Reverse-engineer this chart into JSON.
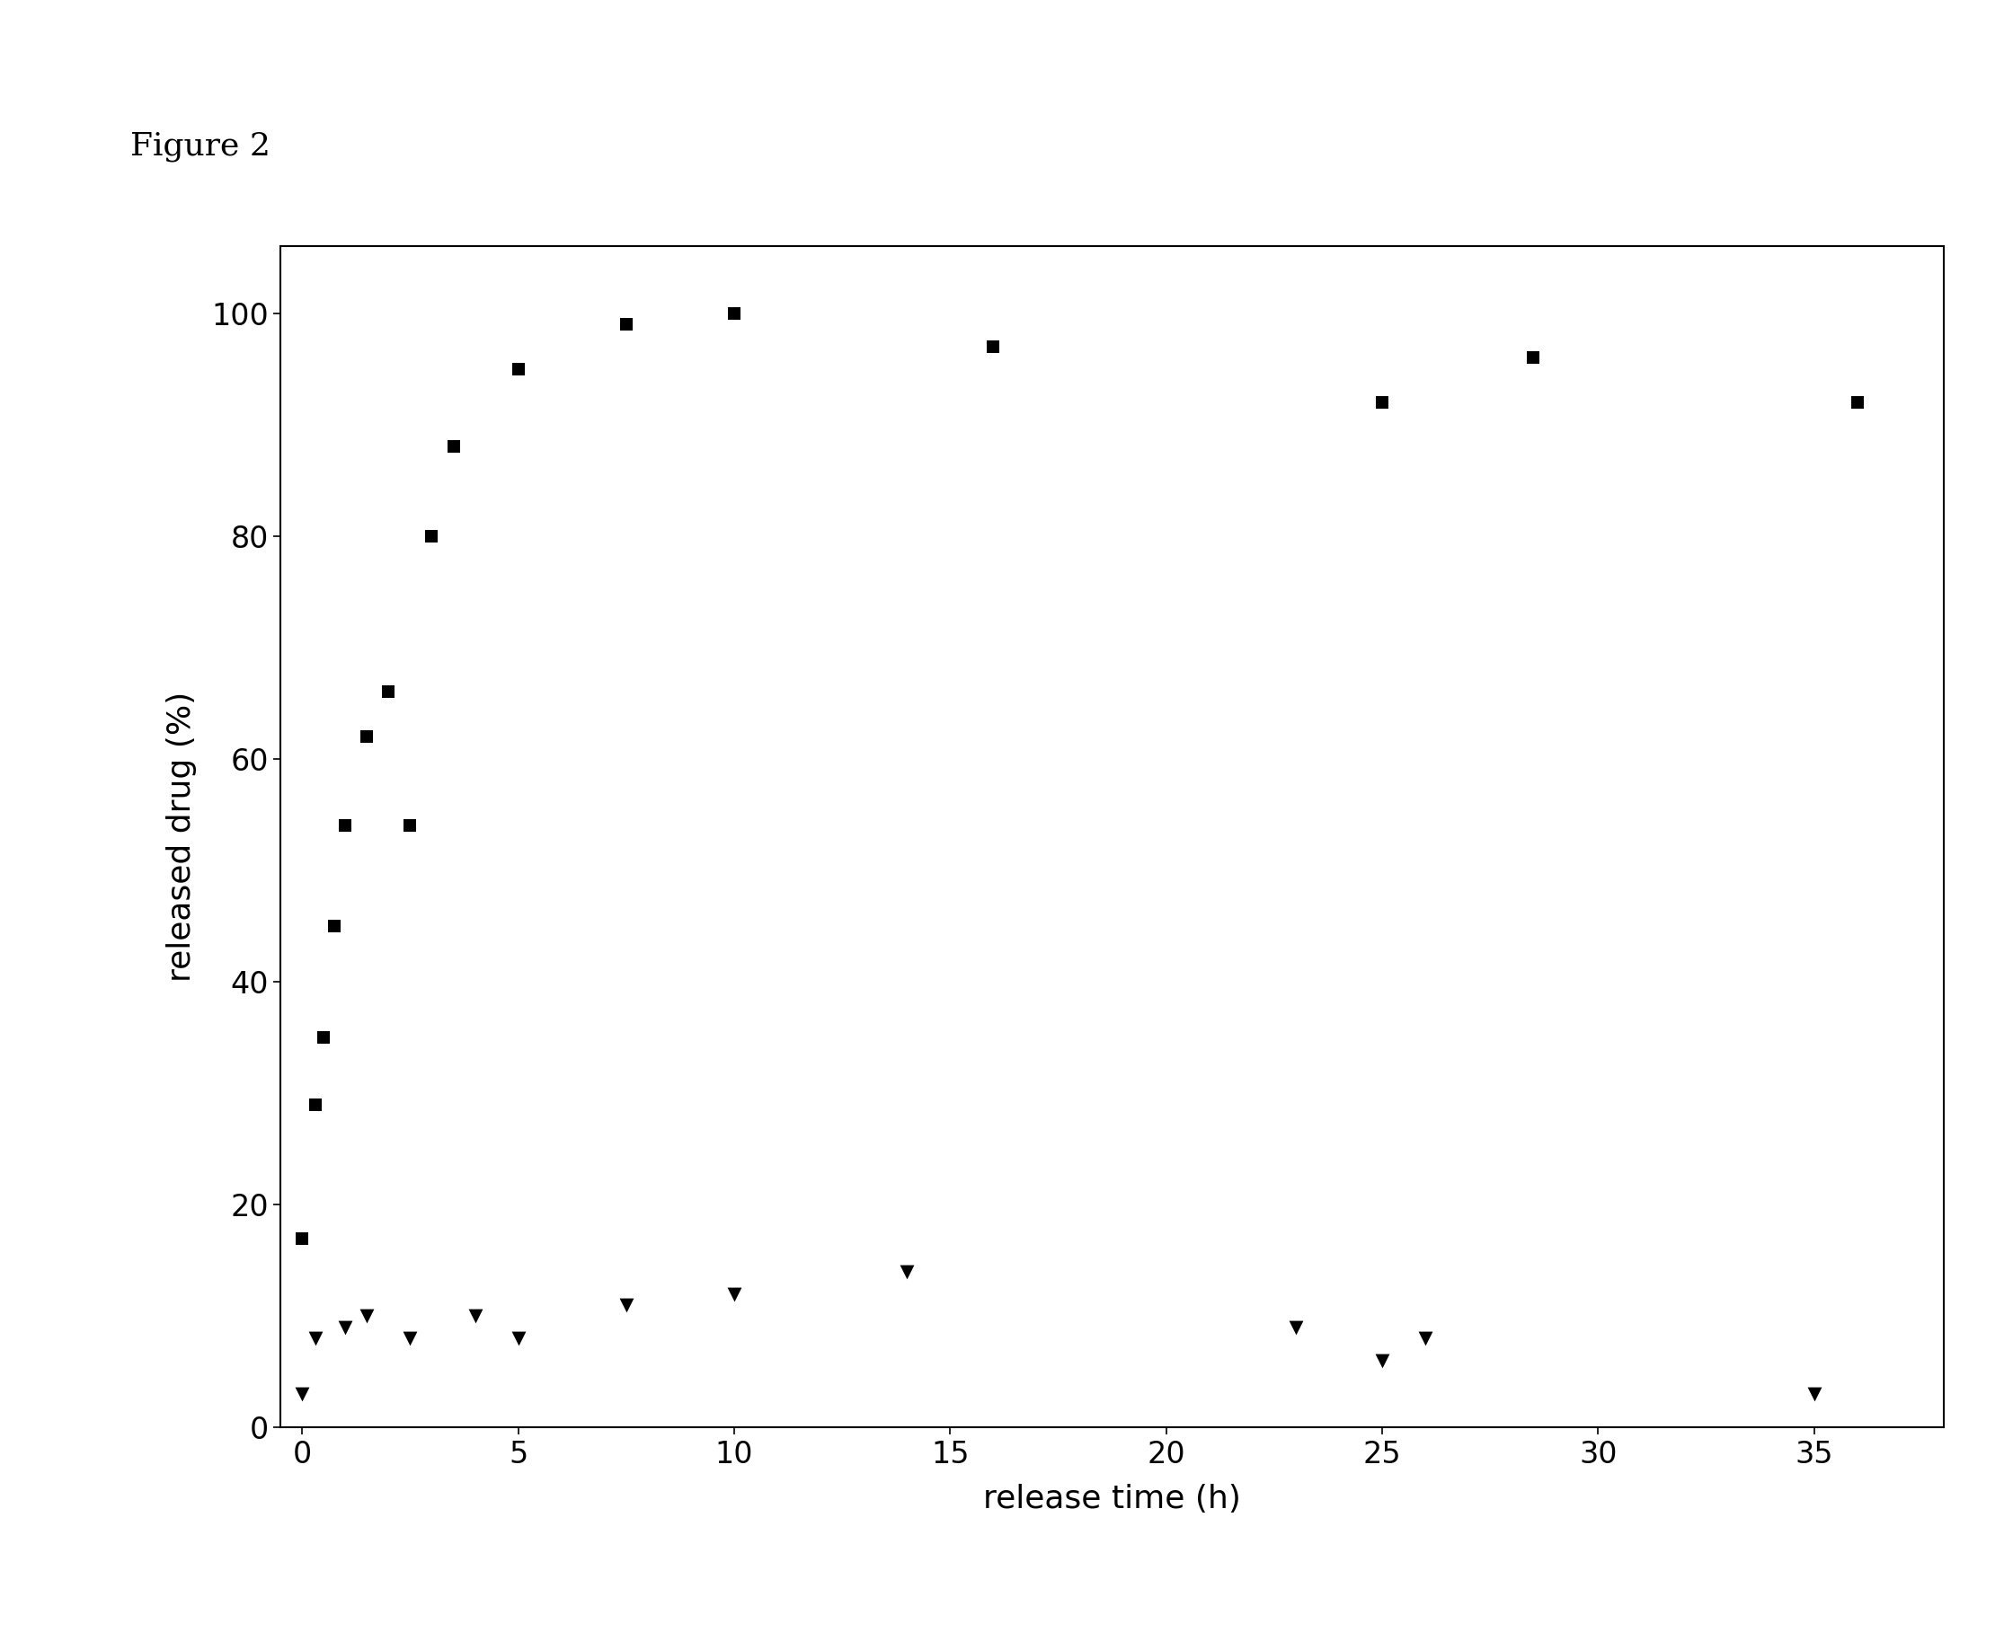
{
  "square_x": [
    0,
    0.3,
    0.5,
    0.75,
    1.0,
    1.5,
    2.0,
    2.5,
    3.0,
    3.5,
    5.0,
    7.5,
    10.0,
    16.0,
    25.0,
    28.5,
    36.0
  ],
  "square_y": [
    17,
    29,
    35,
    45,
    54,
    62,
    66,
    54,
    80,
    88,
    95,
    99,
    100,
    97,
    92,
    96,
    92
  ],
  "triangle_x": [
    0,
    0.3,
    1.0,
    1.5,
    2.5,
    4.0,
    5.0,
    7.5,
    10.0,
    14.0,
    23.0,
    25.0,
    26.0,
    35.0
  ],
  "triangle_y": [
    3,
    8,
    9,
    10,
    8,
    10,
    8,
    11,
    12,
    14,
    9,
    6,
    8,
    3
  ],
  "xlabel": "release time (h)",
  "ylabel": "released drug (%)",
  "xlim": [
    -0.5,
    38
  ],
  "ylim": [
    0,
    106
  ],
  "xticks": [
    0,
    5,
    10,
    15,
    20,
    25,
    30,
    35
  ],
  "yticks": [
    0,
    20,
    40,
    60,
    80,
    100
  ],
  "figure_label": "Figure 2",
  "marker_color": "#000000",
  "marker_size_sq": 110,
  "marker_size_tri": 130,
  "background_color": "#ffffff",
  "spine_linewidth": 1.5,
  "tick_labelsize": 24,
  "axis_labelsize": 26
}
